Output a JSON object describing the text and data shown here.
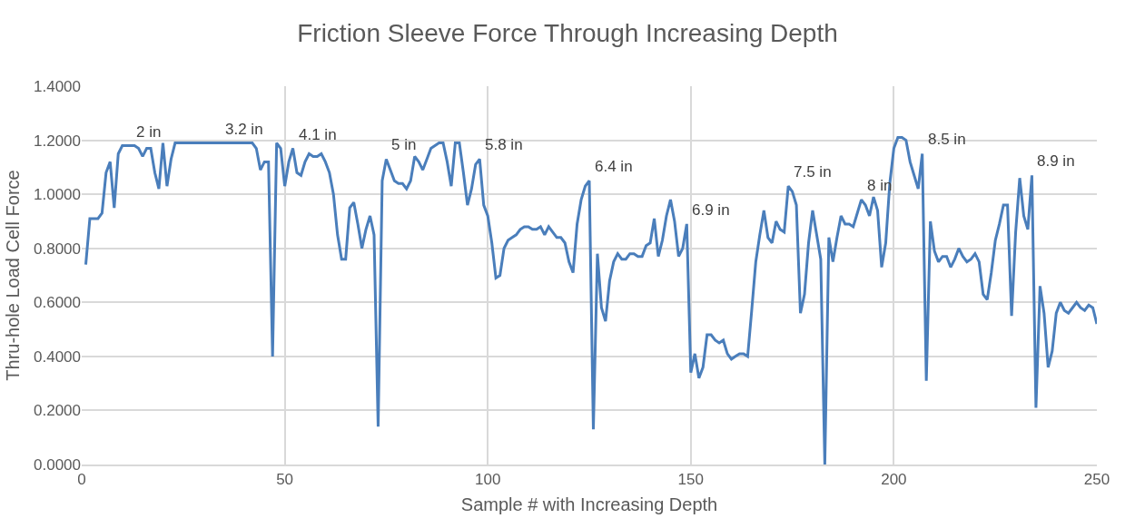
{
  "chart_data": {
    "type": "line",
    "title": "Friction Sleeve Force Through Increasing Depth",
    "xlabel": "Sample # with Increasing Depth",
    "ylabel": "Thru-hole Load Cell Force",
    "x": [
      1,
      2,
      3,
      4,
      5,
      6,
      7,
      8,
      9,
      10,
      11,
      12,
      13,
      14,
      15,
      16,
      17,
      18,
      19,
      20,
      21,
      22,
      23,
      24,
      42,
      43,
      44,
      45,
      46,
      47,
      48,
      49,
      50,
      51,
      52,
      53,
      54,
      55,
      56,
      57,
      58,
      59,
      60,
      61,
      62,
      63,
      64,
      65,
      66,
      67,
      68,
      69,
      70,
      71,
      72,
      73,
      74,
      75,
      76,
      77,
      78,
      79,
      80,
      81,
      82,
      83,
      84,
      85,
      86,
      87,
      88,
      89,
      90,
      91,
      92,
      93,
      94,
      95,
      96,
      97,
      98,
      99,
      100,
      101,
      102,
      103,
      104,
      105,
      106,
      107,
      108,
      109,
      110,
      111,
      112,
      113,
      114,
      115,
      116,
      117,
      118,
      119,
      120,
      121,
      122,
      123,
      124,
      125,
      126,
      127,
      128,
      129,
      130,
      131,
      132,
      133,
      134,
      135,
      136,
      137,
      138,
      139,
      140,
      141,
      142,
      143,
      144,
      145,
      146,
      147,
      148,
      149,
      150,
      151,
      152,
      153,
      154,
      155,
      156,
      157,
      158,
      159,
      160,
      161,
      162,
      163,
      164,
      165,
      166,
      167,
      168,
      169,
      170,
      171,
      172,
      173,
      174,
      175,
      176,
      177,
      178,
      179,
      180,
      181,
      182,
      183,
      184,
      185,
      186,
      187,
      188,
      189,
      190,
      191,
      192,
      193,
      194,
      195,
      196,
      197,
      198,
      199,
      200,
      201,
      202,
      203,
      204,
      205,
      206,
      207,
      208,
      209,
      210,
      211,
      212,
      213,
      214,
      215,
      216,
      217,
      218,
      219,
      220,
      221,
      222,
      223,
      224,
      225,
      226,
      227,
      228,
      229,
      230,
      231,
      232,
      233,
      234,
      235,
      236,
      237,
      238,
      239,
      240,
      241,
      242,
      243,
      244,
      245,
      246,
      247,
      248,
      249,
      250
    ],
    "series": [
      {
        "color": "#4a7ebb",
        "values": [
          0.74,
          0.91,
          0.91,
          0.91,
          0.93,
          1.08,
          1.12,
          0.95,
          1.15,
          1.18,
          1.18,
          1.18,
          1.18,
          1.17,
          1.14,
          1.17,
          1.17,
          1.08,
          1.02,
          1.19,
          1.03,
          1.13,
          1.19,
          1.19,
          1.19,
          1.17,
          1.09,
          1.12,
          1.12,
          0.4,
          1.19,
          1.17,
          1.03,
          1.12,
          1.17,
          1.08,
          1.07,
          1.12,
          1.15,
          1.14,
          1.14,
          1.15,
          1.12,
          1.08,
          1.0,
          0.85,
          0.76,
          0.76,
          0.95,
          0.97,
          0.89,
          0.8,
          0.87,
          0.92,
          0.85,
          0.14,
          1.05,
          1.13,
          1.09,
          1.05,
          1.04,
          1.04,
          1.02,
          1.05,
          1.14,
          1.12,
          1.09,
          1.13,
          1.17,
          1.18,
          1.19,
          1.19,
          1.12,
          1.03,
          1.19,
          1.19,
          1.08,
          0.96,
          1.02,
          1.11,
          1.13,
          0.96,
          0.92,
          0.82,
          0.69,
          0.7,
          0.8,
          0.83,
          0.84,
          0.85,
          0.87,
          0.88,
          0.88,
          0.87,
          0.87,
          0.88,
          0.85,
          0.88,
          0.86,
          0.84,
          0.84,
          0.82,
          0.75,
          0.71,
          0.89,
          0.98,
          1.03,
          1.05,
          0.13,
          0.78,
          0.58,
          0.53,
          0.68,
          0.75,
          0.78,
          0.76,
          0.76,
          0.78,
          0.78,
          0.77,
          0.77,
          0.81,
          0.82,
          0.91,
          0.77,
          0.83,
          0.92,
          0.98,
          0.9,
          0.77,
          0.8,
          0.89,
          0.34,
          0.41,
          0.32,
          0.36,
          0.48,
          0.48,
          0.46,
          0.45,
          0.46,
          0.41,
          0.39,
          0.4,
          0.41,
          0.41,
          0.4,
          0.57,
          0.75,
          0.85,
          0.94,
          0.84,
          0.82,
          0.9,
          0.87,
          0.86,
          1.03,
          1.01,
          0.96,
          0.56,
          0.63,
          0.82,
          0.94,
          0.85,
          0.76,
          0.0,
          0.84,
          0.75,
          0.84,
          0.92,
          0.89,
          0.89,
          0.88,
          0.93,
          0.98,
          0.96,
          0.92,
          0.99,
          0.94,
          0.73,
          0.82,
          1.04,
          1.17,
          1.21,
          1.21,
          1.2,
          1.12,
          1.07,
          1.02,
          1.15,
          0.31,
          0.9,
          0.79,
          0.75,
          0.77,
          0.77,
          0.73,
          0.76,
          0.8,
          0.77,
          0.75,
          0.76,
          0.78,
          0.75,
          0.63,
          0.61,
          0.71,
          0.83,
          0.89,
          0.96,
          0.96,
          0.55,
          0.86,
          1.06,
          0.92,
          0.87,
          1.07,
          0.21,
          0.66,
          0.56,
          0.36,
          0.42,
          0.56,
          0.6,
          0.57,
          0.56,
          0.58,
          0.6,
          0.58,
          0.57,
          0.59,
          0.58,
          0.52
        ]
      }
    ],
    "xlim": [
      0,
      250
    ],
    "xticks": [
      0,
      50,
      100,
      150,
      200,
      250
    ],
    "ylim": [
      0,
      1.4
    ],
    "yticks": [
      {
        "value": 0,
        "label": "0.0000"
      },
      {
        "value": 0.2,
        "label": "0.2000"
      },
      {
        "value": 0.4,
        "label": "0.4000"
      },
      {
        "value": 0.6,
        "label": "0.6000"
      },
      {
        "value": 0.8,
        "label": "0.8000"
      },
      {
        "value": 1.0,
        "label": "1.0000"
      },
      {
        "value": 1.2,
        "label": "1.2000"
      },
      {
        "value": 1.4,
        "label": "1.4000"
      }
    ],
    "grid": true,
    "marker": "none",
    "line_style": "solid",
    "annotations": [
      {
        "text": "2 in",
        "x": 12,
        "y": 1.18
      },
      {
        "text": "3.2 in",
        "x": 34,
        "y": 1.19
      },
      {
        "text": "4.1 in",
        "x": 52,
        "y": 1.17
      },
      {
        "text": "5 in",
        "x": 75,
        "y": 1.13
      },
      {
        "text": "5.8 in",
        "x": 98,
        "y": 1.13
      },
      {
        "text": "6.4 in",
        "x": 125,
        "y": 1.05
      },
      {
        "text": "6.9 in",
        "x": 149,
        "y": 0.89
      },
      {
        "text": "7.5 in",
        "x": 174,
        "y": 1.03
      },
      {
        "text": "8 in",
        "x": 192,
        "y": 0.98
      },
      {
        "text": "8.5 in",
        "x": 207,
        "y": 1.15
      },
      {
        "text": "8.9 in",
        "x": 234,
        "y": 1.07
      }
    ]
  }
}
